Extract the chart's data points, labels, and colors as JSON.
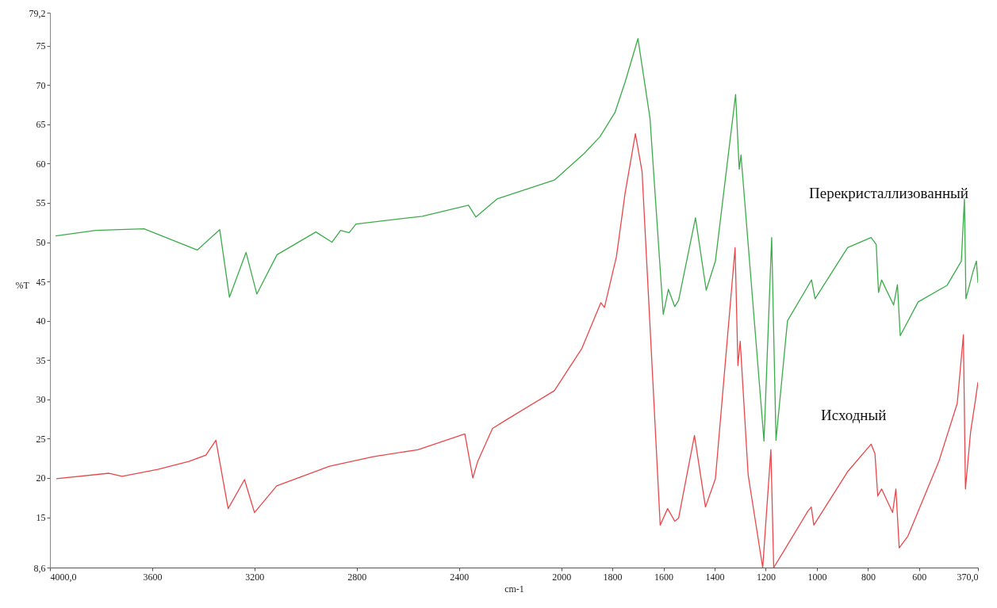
{
  "chart_data": {
    "type": "line",
    "xlabel": "cm-1",
    "ylabel": "%T",
    "xlim": [
      4000,
      370
    ],
    "xticks": [
      {
        "value": 4000,
        "label": "4000,0"
      },
      3600,
      3200,
      2800,
      2400,
      2000,
      1800,
      1600,
      1400,
      1200,
      1000,
      800,
      600,
      {
        "value": 370,
        "label": "370,0"
      }
    ],
    "ylim": [
      8.6,
      79.2
    ],
    "yticks": [
      {
        "value": 8.6,
        "label": "8,6"
      },
      15,
      20,
      25,
      30,
      35,
      40,
      45,
      50,
      55,
      60,
      65,
      70,
      75,
      {
        "value": 79.2,
        "label": "79,2"
      }
    ],
    "series": [
      {
        "name": "Перекристаллизованный",
        "color": "#3cab4a",
        "x": [
          3978,
          3821,
          3632,
          3424,
          3336,
          3298,
          3233,
          3191,
          3112,
          2960,
          2897,
          2863,
          2830,
          2803,
          2544,
          2363,
          2334,
          2251,
          2027,
          1910,
          1849,
          1790,
          1750,
          1700,
          1653,
          1601,
          1581,
          1556,
          1541,
          1475,
          1433,
          1397,
          1318,
          1304,
          1297,
          1207,
          1177,
          1160,
          1115,
          1021,
          1007,
          880,
          788,
          768,
          759,
          747,
          700,
          685,
          674,
          604,
          491,
          435,
          423,
          417,
          389,
          376,
          370
        ],
        "values": [
          50.8,
          51.5,
          51.7,
          49.0,
          51.6,
          43.0,
          48.7,
          43.4,
          48.4,
          51.3,
          50.0,
          51.5,
          51.2,
          52.3,
          53.3,
          54.7,
          53.2,
          55.5,
          57.9,
          61.3,
          63.4,
          66.5,
          70.4,
          75.9,
          65.8,
          40.8,
          44.0,
          41.8,
          42.6,
          53.1,
          43.9,
          47.6,
          68.8,
          59.3,
          61.1,
          24.7,
          50.6,
          24.8,
          40.0,
          45.2,
          42.8,
          49.3,
          50.6,
          49.7,
          43.6,
          45.2,
          42.0,
          44.6,
          38.1,
          42.4,
          44.5,
          47.6,
          55.5,
          42.8,
          46.3,
          47.6,
          44.8
        ]
      },
      {
        "name": "Исходный",
        "color": "#e8474a",
        "x": [
          3975,
          3769,
          3718,
          3578,
          3457,
          3390,
          3351,
          3303,
          3239,
          3200,
          3113,
          2906,
          2736,
          2561,
          2377,
          2346,
          2327,
          2269,
          2215,
          2027,
          1919,
          1845,
          1831,
          1784,
          1750,
          1728,
          1710,
          1684,
          1648,
          1613,
          1584,
          1556,
          1541,
          1479,
          1436,
          1397,
          1320,
          1309,
          1300,
          1269,
          1212,
          1180,
          1169,
          1135,
          1035,
          1022,
          1012,
          880,
          788,
          773,
          762,
          747,
          704,
          691,
          678,
          644,
          522,
          451,
          427,
          419,
          399,
          380,
          370
        ],
        "values": [
          19.9,
          20.6,
          20.2,
          21.1,
          22.1,
          22.9,
          24.8,
          16.1,
          19.8,
          15.6,
          19.0,
          21.5,
          22.7,
          23.6,
          25.6,
          20.0,
          22.1,
          26.3,
          27.4,
          31.1,
          36.5,
          42.3,
          41.7,
          48.2,
          56.3,
          60.4,
          63.8,
          59.0,
          36.3,
          14.0,
          16.1,
          14.5,
          14.9,
          25.4,
          16.3,
          19.9,
          49.3,
          34.3,
          37.4,
          20.4,
          8.6,
          23.6,
          8.6,
          10.4,
          15.8,
          16.3,
          14.0,
          20.8,
          24.3,
          23.1,
          17.7,
          18.6,
          15.6,
          18.6,
          11.1,
          12.6,
          22.2,
          29.5,
          38.2,
          18.6,
          25.8,
          29.9,
          32.2
        ]
      }
    ]
  }
}
